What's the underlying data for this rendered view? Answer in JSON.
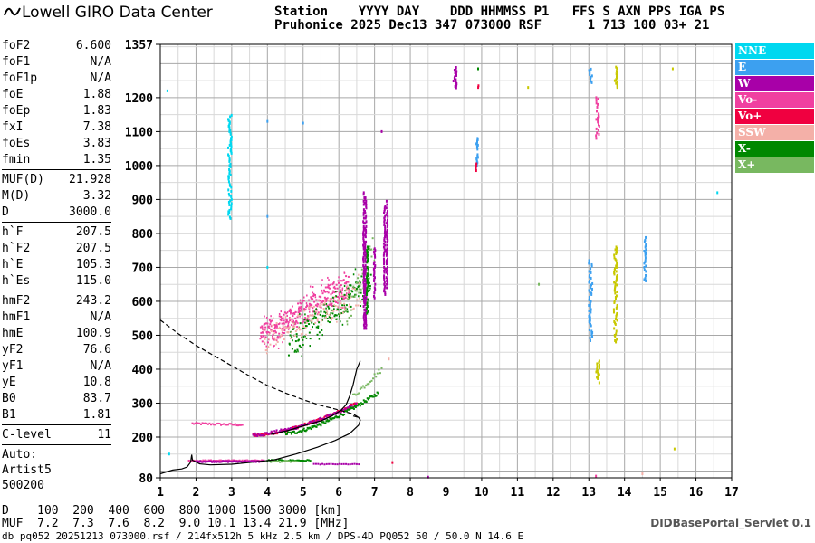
{
  "logo": {
    "text": "Lowell GIRO Data Center"
  },
  "header": {
    "line1": "Station    YYYY DAY    DDD HHMMSS P1   FFS S AXN PPS IGA PS",
    "line2": "Pruhonice 2025 Dec13 347 073000 RSF      1 713 100 03+ 21"
  },
  "params": {
    "group1": [
      {
        "label": "foF2",
        "value": "6.600"
      },
      {
        "label": "foF1",
        "value": "N/A"
      },
      {
        "label": "foF1p",
        "value": "N/A"
      },
      {
        "label": "foE",
        "value": "1.88"
      },
      {
        "label": "foEp",
        "value": "1.83"
      },
      {
        "label": "fxI",
        "value": "7.38"
      },
      {
        "label": "foEs",
        "value": "3.83"
      },
      {
        "label": "fmin",
        "value": "1.35"
      }
    ],
    "group2": [
      {
        "label": "MUF(D)",
        "value": "21.928"
      },
      {
        "label": "M(D)",
        "value": "3.32"
      },
      {
        "label": "D",
        "value": "3000.0"
      }
    ],
    "group3": [
      {
        "label": "h`F",
        "value": "207.5"
      },
      {
        "label": "h`F2",
        "value": "207.5"
      },
      {
        "label": "h`E",
        "value": "105.3"
      },
      {
        "label": "h`Es",
        "value": "115.0"
      }
    ],
    "group4": [
      {
        "label": "hmF2",
        "value": "243.2"
      },
      {
        "label": "hmF1",
        "value": "N/A"
      },
      {
        "label": "hmE",
        "value": "100.9"
      },
      {
        "label": "yF2",
        "value": "76.6"
      },
      {
        "label": "yF1",
        "value": "N/A"
      },
      {
        "label": "yE",
        "value": "10.8"
      },
      {
        "label": "B0",
        "value": "83.7"
      },
      {
        "label": "B1",
        "value": "1.81"
      }
    ],
    "group5": [
      {
        "label": "C-level",
        "value": "11"
      }
    ],
    "auto": [
      "Auto:",
      "Artist5",
      "500200"
    ]
  },
  "legend": [
    {
      "label": "NNE",
      "color": "#00d8f0"
    },
    {
      "label": "E",
      "color": "#3ca0f0"
    },
    {
      "label": "W",
      "color": "#a800a8"
    },
    {
      "label": "Vo-",
      "color": "#f040a0"
    },
    {
      "label": "Vo+",
      "color": "#f00040"
    },
    {
      "label": "SSW",
      "color": "#f4b0a8"
    },
    {
      "label": "X-",
      "color": "#008800"
    },
    {
      "label": "X+",
      "color": "#78b860"
    }
  ],
  "bottom": {
    "d_line": "D    100  200  400  600  800 1000 1500 3000 [km]",
    "muf_line": "MUF  7.2  7.3  7.6  8.2  9.0 10.1 13.4 21.9 [MHz]",
    "db_line": "db pq052 20251213 073000.rsf / 214fx512h 5 kHz 2.5 km / DPS-4D PQ052 50 / 50.0 N 14.6 E",
    "servlet": "DIDBasePortal_Servlet 0.1"
  },
  "chart_data": {
    "type": "scatter",
    "xlim": [
      1,
      17
    ],
    "ylim": [
      80,
      1357
    ],
    "xticks": [
      1,
      2,
      3,
      4,
      5,
      6,
      7,
      8,
      9,
      10,
      11,
      12,
      13,
      14,
      15,
      16,
      17
    ],
    "yticks": [
      80,
      200,
      300,
      400,
      500,
      600,
      700,
      800,
      900,
      1000,
      1100,
      1200,
      1357
    ],
    "grid": true,
    "legend_position": "right",
    "colors": {
      "NNE": "#00d8f0",
      "E": "#3ca0f0",
      "W": "#a800a8",
      "Vo-": "#f040a0",
      "Vo+": "#f00040",
      "SSW": "#f4b0a8",
      "X-": "#008800",
      "X+": "#78b860",
      "Es": "#c8c800",
      "black": "#000000"
    },
    "traces": [
      {
        "series": "Vo-",
        "x": [
          1.9,
          3.3
        ],
        "y": [
          240,
          236
        ],
        "noise": 3,
        "step": 0.04
      },
      {
        "series": "Vo+",
        "x": [
          3.6,
          6.5
        ],
        "y": [
          205,
          300
        ],
        "curve": 1.6,
        "noise": 4,
        "step": 0.025
      },
      {
        "series": "W",
        "x": [
          3.6,
          6.5
        ],
        "y": [
          207,
          296
        ],
        "curve": 1.6,
        "noise": 5,
        "step": 0.03
      },
      {
        "series": "X-",
        "x": [
          4.5,
          7.1
        ],
        "y": [
          210,
          330
        ],
        "curve": 1.5,
        "noise": 5,
        "step": 0.025
      },
      {
        "series": "X+",
        "x": [
          6.4,
          7.2
        ],
        "y": [
          320,
          400
        ],
        "noise": 8,
        "step": 0.04
      },
      {
        "series": "Vo-",
        "x": [
          1.8,
          3.9
        ],
        "y": [
          130,
          130
        ],
        "noise": 2,
        "step": 0.02
      },
      {
        "series": "W",
        "x": [
          2.0,
          3.9
        ],
        "y": [
          128,
          128
        ],
        "noise": 2,
        "step": 0.03
      },
      {
        "series": "X-",
        "x": [
          4.0,
          5.2
        ],
        "y": [
          131,
          131
        ],
        "noise": 2,
        "step": 0.04
      },
      {
        "series": "X+",
        "x": [
          4.1,
          4.8
        ],
        "y": [
          128,
          128
        ],
        "noise": 2,
        "step": 0.05
      },
      {
        "series": "W",
        "x": [
          5.3,
          6.6
        ],
        "y": [
          120,
          120
        ],
        "noise": 1,
        "step": 0.06
      },
      {
        "series": "Vo-",
        "x": [
          3.8,
          6.3
        ],
        "y": [
          495,
          650
        ],
        "noise": 35,
        "step": 0.012
      },
      {
        "series": "X-",
        "x": [
          4.6,
          6.9
        ],
        "y": [
          470,
          660
        ],
        "noise": 40,
        "step": 0.02
      },
      {
        "series": "SSW",
        "x": [
          3.9,
          6.6
        ],
        "y": [
          485,
          620
        ],
        "noise": 35,
        "step": 0.03
      },
      {
        "series": "X+",
        "x": [
          6.2,
          7.0
        ],
        "y": [
          560,
          760
        ],
        "noise": 40,
        "step": 0.03
      },
      {
        "series": "E",
        "x": [
          13.0,
          13.1
        ],
        "y": [
          480,
          720
        ],
        "noise": 3,
        "step": 0.004
      },
      {
        "series": "Es",
        "x": [
          13.7,
          13.8
        ],
        "y": [
          480,
          760
        ],
        "noise": 3,
        "step": 0.004
      },
      {
        "series": "Es",
        "x": [
          13.2,
          13.3
        ],
        "y": [
          360,
          430
        ],
        "noise": 3,
        "step": 0.01
      },
      {
        "series": "Vo-",
        "x": [
          13.2,
          13.3
        ],
        "y": [
          1080,
          1200
        ],
        "noise": 3,
        "step": 0.01
      },
      {
        "series": "E",
        "x": [
          13.0,
          13.1
        ],
        "y": [
          1240,
          1290
        ],
        "noise": 3,
        "step": 0.02
      },
      {
        "series": "Es",
        "x": [
          13.7,
          13.8
        ],
        "y": [
          1230,
          1290
        ],
        "noise": 3,
        "step": 0.02
      },
      {
        "series": "W",
        "x": [
          9.2,
          9.3
        ],
        "y": [
          1225,
          1290
        ],
        "noise": 3,
        "step": 0.02
      },
      {
        "series": "E",
        "x": [
          9.85,
          9.9
        ],
        "y": [
          1000,
          1080
        ],
        "noise": 3,
        "step": 0.02
      },
      {
        "series": "NNE",
        "x": [
          2.9,
          3.0
        ],
        "y": [
          840,
          1150
        ],
        "noise": 5,
        "step": 0.015
      },
      {
        "series": "E",
        "x": [
          14.55,
          14.6
        ],
        "y": [
          660,
          790
        ],
        "noise": 4,
        "step": 0.02
      }
    ],
    "columns": [
      {
        "series": "W",
        "x": 6.7,
        "y": [
          520,
          920
        ]
      },
      {
        "series": "W",
        "x": 6.75,
        "y": [
          520,
          910
        ]
      },
      {
        "series": "W",
        "x": 7.35,
        "y": [
          640,
          900
        ]
      },
      {
        "series": "W",
        "x": 7.28,
        "y": [
          620,
          880
        ]
      },
      {
        "series": "X-",
        "x": 6.8,
        "y": [
          560,
          760
        ]
      },
      {
        "series": "W",
        "x": 7.0,
        "y": [
          610,
          760
        ]
      },
      {
        "series": "Vo+",
        "x": 9.85,
        "y": [
          985,
          1010
        ]
      },
      {
        "series": "Vo+",
        "x": 9.9,
        "y": [
          1225,
          1245
        ]
      }
    ],
    "points": [
      {
        "series": "E",
        "x": 4.0,
        "y": 1130
      },
      {
        "series": "E",
        "x": 5.0,
        "y": 1125
      },
      {
        "series": "X-",
        "x": 9.9,
        "y": 1285
      },
      {
        "series": "Es",
        "x": 15.35,
        "y": 1285
      },
      {
        "series": "Es",
        "x": 15.4,
        "y": 165
      },
      {
        "series": "NNE",
        "x": 16.6,
        "y": 920
      },
      {
        "series": "NNE",
        "x": 1.2,
        "y": 1220
      },
      {
        "series": "SSW",
        "x": 7.4,
        "y": 430
      },
      {
        "series": "W",
        "x": 7.2,
        "y": 1100
      },
      {
        "series": "Vo+",
        "x": 7.5,
        "y": 125
      },
      {
        "series": "W",
        "x": 8.5,
        "y": 82
      },
      {
        "series": "SSW",
        "x": 14.5,
        "y": 92
      },
      {
        "series": "Es",
        "x": 11.3,
        "y": 1230
      },
      {
        "series": "X+",
        "x": 11.6,
        "y": 650
      },
      {
        "series": "Vo-",
        "x": 13.2,
        "y": 85
      },
      {
        "series": "NNE",
        "x": 4.0,
        "y": 700
      },
      {
        "series": "E",
        "x": 4.0,
        "y": 850
      },
      {
        "series": "NNE",
        "x": 1.25,
        "y": 150
      }
    ],
    "lines": [
      {
        "name": "E-layer model trace",
        "style": "solid",
        "points": [
          [
            1.0,
            92
          ],
          [
            1.35,
            103
          ],
          [
            1.6,
            106
          ],
          [
            1.75,
            112
          ],
          [
            1.85,
            126
          ],
          [
            1.88,
            148
          ],
          [
            1.9,
            132
          ],
          [
            2.1,
            121
          ],
          [
            2.4,
            118
          ],
          [
            3.0,
            120
          ],
          [
            3.6,
            126
          ],
          [
            4.2,
            133
          ],
          [
            4.8,
            150
          ],
          [
            5.4,
            170
          ],
          [
            5.9,
            190
          ],
          [
            6.3,
            210
          ],
          [
            6.55,
            235
          ],
          [
            6.6,
            250
          ],
          [
            6.55,
            258
          ],
          [
            6.4,
            262
          ]
        ]
      },
      {
        "name": "F2 model trace",
        "style": "solid",
        "points": [
          [
            4.1,
            208
          ],
          [
            4.6,
            220
          ],
          [
            5.1,
            236
          ],
          [
            5.5,
            248
          ],
          [
            5.8,
            262
          ],
          [
            6.05,
            278
          ],
          [
            6.2,
            295
          ],
          [
            6.3,
            320
          ],
          [
            6.4,
            355
          ],
          [
            6.5,
            400
          ],
          [
            6.6,
            425
          ]
        ]
      },
      {
        "name": "MUF curve",
        "style": "dashed",
        "points": [
          [
            1.0,
            545
          ],
          [
            1.5,
            505
          ],
          [
            2.0,
            470
          ],
          [
            2.5,
            440
          ],
          [
            3.0,
            410
          ],
          [
            3.5,
            380
          ],
          [
            4.0,
            352
          ],
          [
            4.5,
            330
          ],
          [
            5.0,
            310
          ],
          [
            5.5,
            293
          ],
          [
            6.0,
            280
          ],
          [
            6.4,
            268
          ],
          [
            6.6,
            255
          ]
        ]
      }
    ]
  }
}
